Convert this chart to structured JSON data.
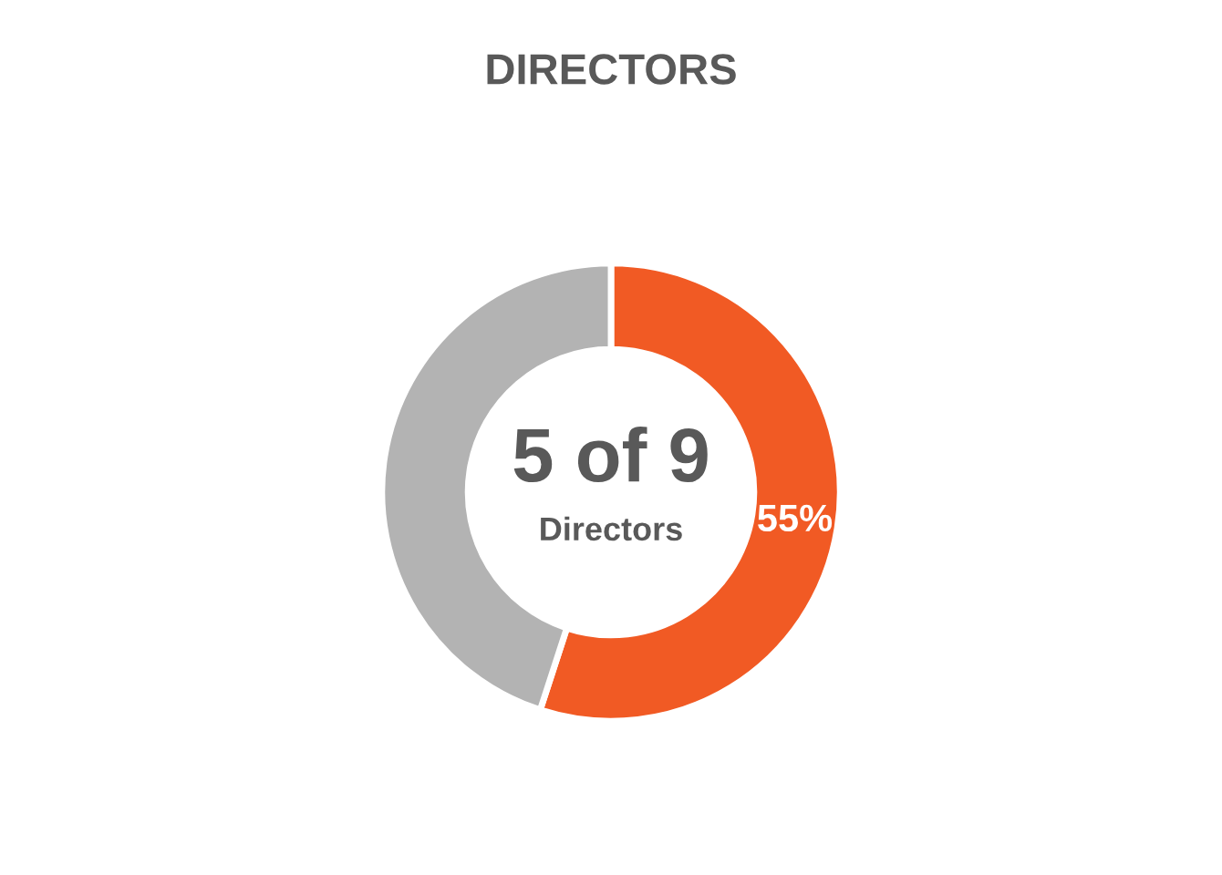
{
  "chart_data": {
    "type": "donut",
    "title": "DIRECTORS",
    "categories": [
      null,
      null
    ],
    "values": [
      55,
      45
    ],
    "colors": [
      "#f15a24",
      "#b3b3b3"
    ],
    "value_labels": [
      "55%",
      null
    ],
    "annotations": [
      "5 of 9",
      "Directors"
    ],
    "legend": false
  }
}
